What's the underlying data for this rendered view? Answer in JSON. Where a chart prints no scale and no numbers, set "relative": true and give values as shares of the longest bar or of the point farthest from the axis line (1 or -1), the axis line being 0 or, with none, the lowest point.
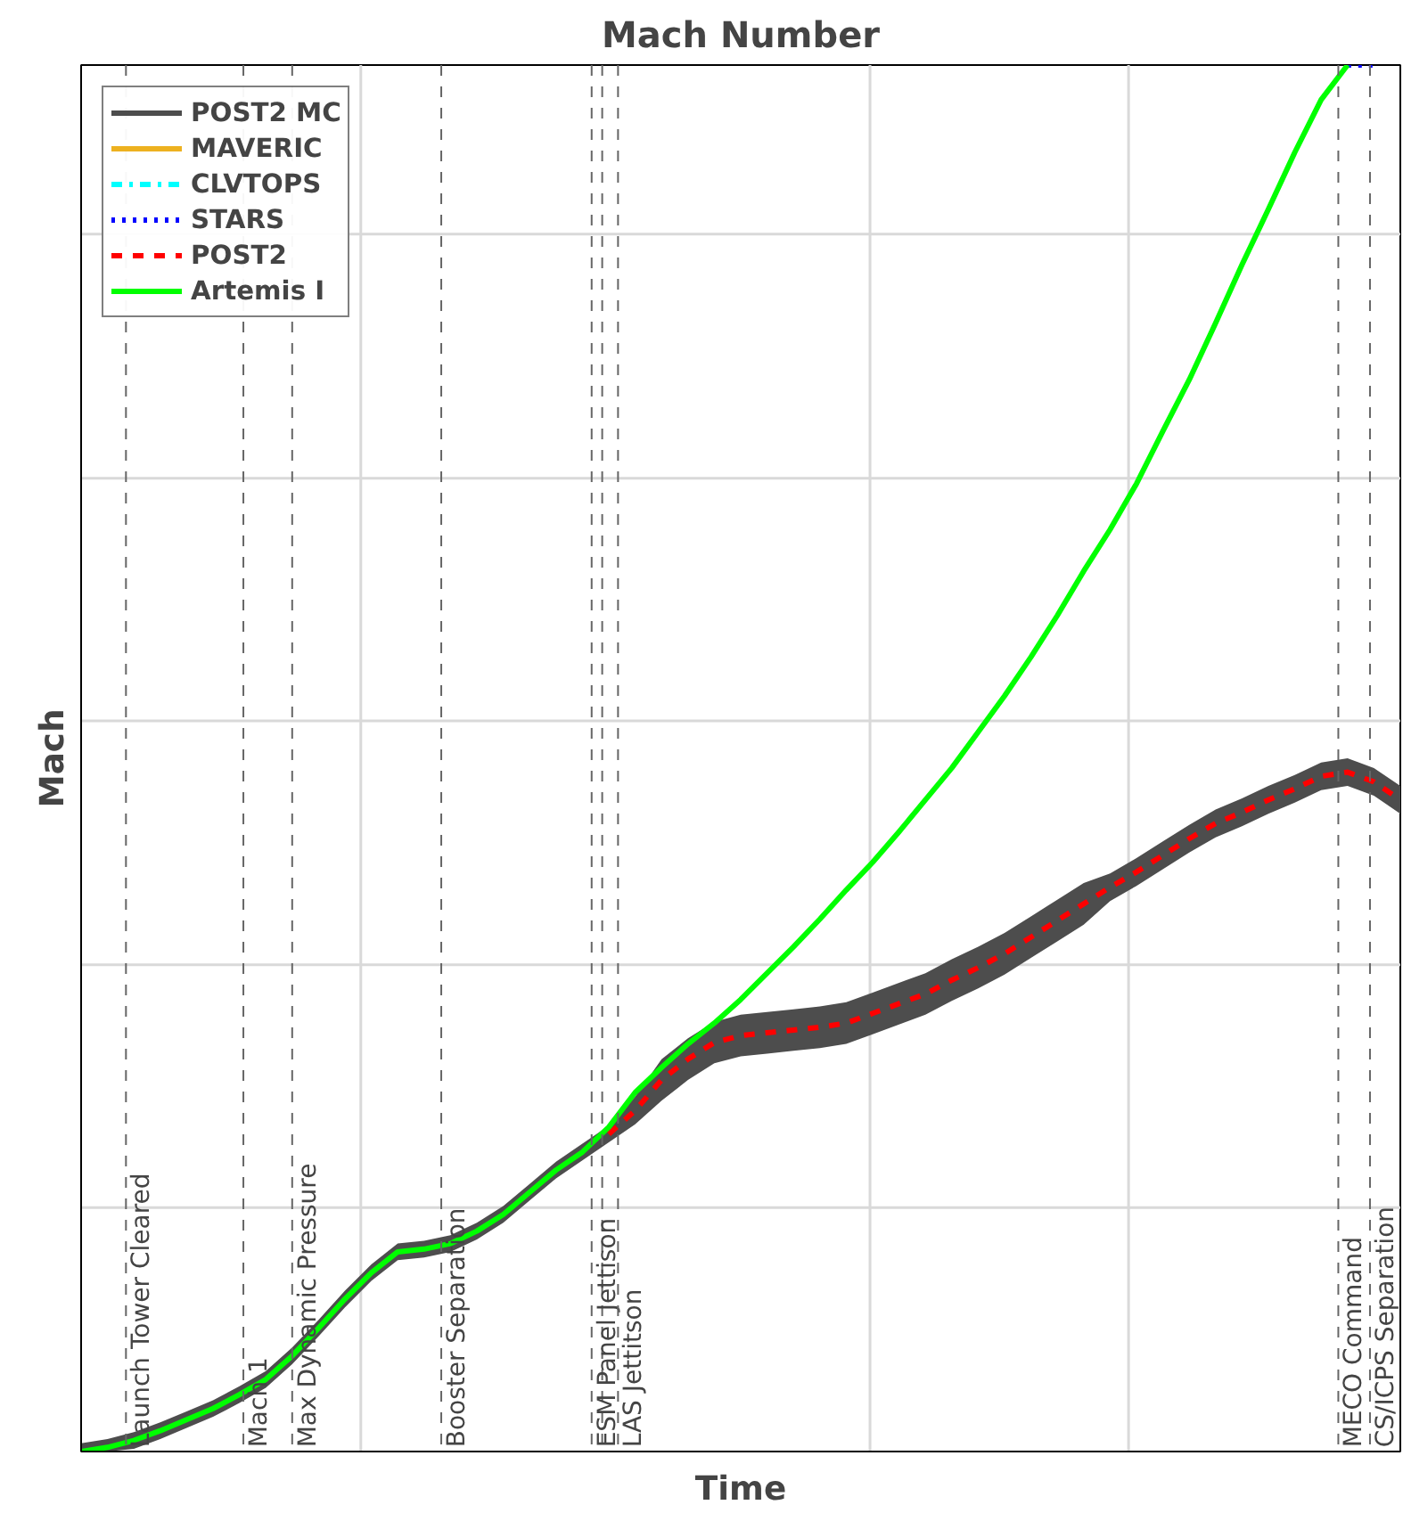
{
  "chart_data": {
    "type": "line",
    "title": "Mach Number",
    "xlabel": "Time",
    "ylabel": "Mach",
    "relative": true,
    "legend": "top left",
    "marker": "none",
    "categories": [
      null,
      null,
      null,
      null,
      null,
      null,
      null,
      null,
      null,
      null,
      null,
      null,
      null,
      null,
      null,
      null,
      null,
      null,
      null,
      null,
      null,
      null,
      null,
      null,
      null,
      null,
      null,
      null,
      null,
      null,
      null,
      null,
      null,
      null,
      null,
      null,
      null,
      null,
      null,
      null,
      null,
      null,
      null,
      null,
      null,
      null,
      null,
      null,
      null,
      null,
      null
    ],
    "series": [
      {
        "name": "POST2 MC",
        "color": "#4d4d4d",
        "line_style": "solid",
        "values": [
          null,
          null,
          null,
          null,
          null,
          null,
          null,
          null,
          null,
          null,
          null,
          null,
          null,
          null,
          null,
          null,
          null,
          null,
          null,
          null,
          null,
          null,
          null,
          null,
          null,
          null,
          null,
          null,
          null,
          null,
          null,
          null,
          null,
          null,
          null,
          null,
          null,
          null,
          null,
          null,
          null,
          null,
          null,
          null,
          null,
          null,
          null,
          null,
          null,
          null,
          null
        ],
        "lower": [
          0,
          0,
          0.002,
          0.009,
          0.017,
          0.025,
          0.035,
          0.046,
          0.063,
          0.083,
          0.104,
          0.123,
          0.138,
          0.14,
          0.144,
          0.153,
          0.165,
          0.181,
          0.197,
          0.21,
          0.223,
          0.236,
          0.253,
          0.268,
          0.28,
          0.285,
          0.287,
          0.289,
          0.291,
          0.294,
          0.301,
          0.308,
          0.315,
          0.325,
          0.334,
          0.344,
          0.356,
          0.368,
          0.38,
          0.397,
          0.408,
          0.42,
          0.432,
          0.443,
          0.451,
          0.46,
          0.468,
          0.477,
          0.48,
          0.473,
          0.46
        ],
        "upper": [
          0.006,
          0.009,
          0.014,
          0.021,
          0.029,
          0.037,
          0.047,
          0.058,
          0.075,
          0.095,
          0.116,
          0.135,
          0.15,
          0.152,
          0.156,
          0.165,
          0.177,
          0.193,
          0.209,
          0.222,
          0.235,
          0.256,
          0.283,
          0.298,
          0.31,
          0.315,
          0.317,
          0.319,
          0.321,
          0.324,
          0.331,
          0.338,
          0.345,
          0.355,
          0.364,
          0.374,
          0.386,
          0.398,
          0.41,
          0.417,
          0.428,
          0.44,
          0.452,
          0.463,
          0.471,
          0.48,
          0.488,
          0.497,
          0.5,
          0.493,
          0.48
        ]
      },
      {
        "name": "MAVERIC",
        "color": "#edb120",
        "line_style": "solid",
        "values": [
          null,
          null,
          null,
          null,
          null,
          null,
          null,
          null,
          null,
          null,
          null,
          null,
          null,
          null,
          null,
          null,
          null,
          null,
          null,
          null,
          null,
          null,
          null,
          null,
          null,
          null,
          null,
          null,
          null,
          null,
          null,
          null,
          null,
          null,
          null,
          null,
          null,
          null,
          null,
          null,
          null,
          null,
          null,
          null,
          null,
          null,
          null,
          null,
          null,
          null,
          null
        ]
      },
      {
        "name": "CLVTOPS",
        "color": "#00ffff",
        "line_style": "dashdot",
        "values": [
          null,
          null,
          null,
          null,
          null,
          null,
          null,
          null,
          null,
          null,
          null,
          null,
          null,
          null,
          null,
          null,
          null,
          null,
          null,
          null,
          null,
          null,
          null,
          null,
          null,
          null,
          null,
          null,
          null,
          null,
          null,
          null,
          null,
          null,
          null,
          null,
          null,
          null,
          null,
          null,
          null,
          null,
          null,
          null,
          null,
          null,
          null,
          null,
          null,
          null,
          null
        ]
      },
      {
        "name": "STARS",
        "color": "#0000ff",
        "line_style": "dotted",
        "values": [
          null,
          null,
          null,
          null,
          null,
          null,
          null,
          null,
          null,
          null,
          null,
          null,
          null,
          null,
          null,
          null,
          null,
          null,
          null,
          null,
          null,
          null,
          null,
          null,
          null,
          null,
          null,
          null,
          null,
          null,
          null,
          null,
          null,
          null,
          null,
          null,
          null,
          null,
          null,
          null,
          null,
          null,
          null,
          null,
          null,
          null,
          null,
          null,
          1,
          1,
          null
        ]
      },
      {
        "name": "POST2",
        "color": "#ff0000",
        "line_style": "dashed",
        "values": [
          null,
          null,
          null,
          null,
          null,
          null,
          null,
          null,
          null,
          null,
          null,
          null,
          null,
          null,
          null,
          null,
          null,
          null,
          null,
          null,
          0.229,
          0.246,
          0.268,
          0.283,
          0.295,
          0.3,
          0.302,
          0.304,
          0.306,
          0.309,
          0.316,
          0.323,
          0.33,
          0.34,
          0.349,
          0.359,
          0.371,
          0.383,
          0.395,
          0.407,
          0.418,
          0.43,
          0.442,
          0.453,
          0.461,
          0.47,
          0.478,
          0.487,
          0.49,
          0.483,
          0.47
        ]
      },
      {
        "name": "Artemis I",
        "color": "#00ff00",
        "line_style": "solid",
        "values": [
          0,
          0.003,
          0.008,
          0.015,
          0.023,
          0.031,
          0.041,
          0.052,
          0.069,
          0.089,
          0.11,
          0.129,
          0.144,
          0.146,
          0.15,
          0.159,
          0.171,
          0.187,
          0.203,
          0.216,
          0.234,
          0.259,
          0.277,
          0.294,
          0.309,
          0.326,
          0.345,
          0.364,
          0.384,
          0.405,
          0.425,
          0.447,
          0.47,
          0.493,
          0.519,
          0.545,
          0.573,
          0.603,
          0.635,
          0.665,
          0.698,
          0.736,
          0.773,
          0.814,
          0.856,
          0.896,
          0.937,
          0.975,
          1,
          null,
          null
        ]
      }
    ],
    "grid": true,
    "annotations": [
      "Launch Tower Cleared",
      "Mach 1",
      "Max Dynamic Pressure",
      "Booster Separation",
      "ESM Panel Jettison",
      "LAS Jettitson",
      "MECO Command",
      "CS/ICPS Separation"
    ]
  }
}
